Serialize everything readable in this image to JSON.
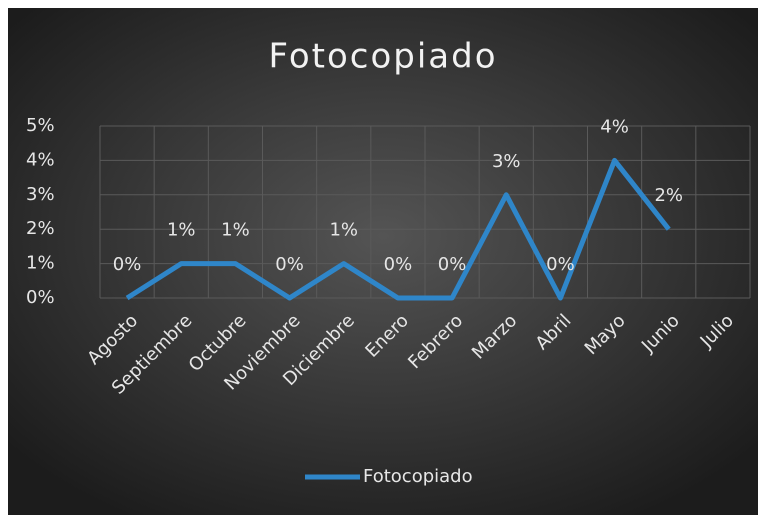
{
  "chart_data": {
    "type": "line",
    "title": "Fotocopiado",
    "categories": [
      "Agosto",
      "Septiembre",
      "Octubre",
      "Noviembre",
      "Diciembre",
      "Enero",
      "Febrero",
      "Marzo",
      "Abril",
      "Mayo",
      "Junio",
      "Julio"
    ],
    "series": [
      {
        "name": "Fotocopiado",
        "color": "#2f86c9",
        "values": [
          0,
          1,
          1,
          0,
          1,
          0,
          0,
          3,
          0,
          4,
          2,
          null
        ],
        "value_labels": [
          "0%",
          "1%",
          "1%",
          "0%",
          "1%",
          "0%",
          "0%",
          "3%",
          "0%",
          "4%",
          "2%",
          null
        ]
      }
    ],
    "ylim": [
      0,
      5
    ],
    "yticks": [
      {
        "value": 0,
        "label": "0%"
      },
      {
        "value": 1,
        "label": "1%"
      },
      {
        "value": 2,
        "label": "2%"
      },
      {
        "value": 3,
        "label": "3%"
      },
      {
        "value": 4,
        "label": "4%"
      },
      {
        "value": 5,
        "label": "5%"
      }
    ],
    "grid": true,
    "legend": "bottom"
  }
}
